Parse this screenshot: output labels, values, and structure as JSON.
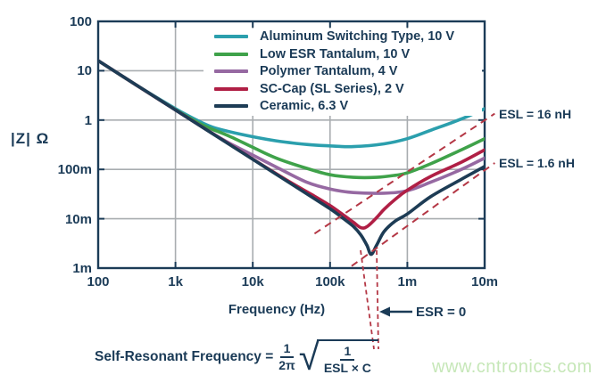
{
  "watermark": {
    "text": "www.cntronics.com",
    "color": "#c6e7b8"
  },
  "colors": {
    "text": "#1b3b57",
    "axis": "#1b3b57",
    "grid": "#a9adb0",
    "dashed": "#b43745",
    "background": "#ffffff"
  },
  "chart_data": {
    "type": "line",
    "title": "",
    "x_axis": {
      "label": "Frequency (Hz)",
      "scale": "log",
      "min": 100,
      "max": 10000000,
      "ticks": [
        {
          "label": "100",
          "value": 100
        },
        {
          "label": "1k",
          "value": 1000
        },
        {
          "label": "10k",
          "value": 10000
        },
        {
          "label": "100k",
          "value": 100000
        },
        {
          "label": "1m",
          "value": 1000000
        },
        {
          "label": "10m",
          "value": 10000000
        }
      ]
    },
    "y_axis": {
      "label": "|Z| Ω",
      "unit": "Ω",
      "scale": "log",
      "min": 0.001,
      "max": 100,
      "ticks": [
        {
          "label": "100",
          "value": 100
        },
        {
          "label": "10",
          "value": 10
        },
        {
          "label": "1",
          "value": 1
        },
        {
          "label": "100m",
          "value": 0.1
        },
        {
          "label": "10m",
          "value": 0.01
        },
        {
          "label": "1m",
          "value": 0.001
        }
      ]
    },
    "grid": true,
    "legend_position": "top-right-inside",
    "series": [
      {
        "name": "Aluminum Switching Type, 10 V",
        "color": "#2b9fad",
        "points": [
          [
            100,
            16
          ],
          [
            300,
            5.3
          ],
          [
            1000,
            1.7
          ],
          [
            2000,
            0.95
          ],
          [
            3000,
            0.72
          ],
          [
            5000,
            0.58
          ],
          [
            10000,
            0.46
          ],
          [
            20000,
            0.38
          ],
          [
            50000,
            0.32
          ],
          [
            100000,
            0.3
          ],
          [
            200000,
            0.29
          ],
          [
            500000,
            0.33
          ],
          [
            1000000,
            0.42
          ],
          [
            2000000,
            0.62
          ],
          [
            5000000,
            1.05
          ],
          [
            10000000,
            1.7
          ]
        ]
      },
      {
        "name": "Low ESR Tantalum, 10 V",
        "color": "#3fa24a",
        "points": [
          [
            100,
            16
          ],
          [
            300,
            5.3
          ],
          [
            1000,
            1.62
          ],
          [
            2000,
            0.87
          ],
          [
            3000,
            0.65
          ],
          [
            5000,
            0.47
          ],
          [
            10000,
            0.28
          ],
          [
            20000,
            0.17
          ],
          [
            50000,
            0.105
          ],
          [
            100000,
            0.078
          ],
          [
            200000,
            0.069
          ],
          [
            400000,
            0.069
          ],
          [
            700000,
            0.076
          ],
          [
            1000000,
            0.085
          ],
          [
            2000000,
            0.13
          ],
          [
            5000000,
            0.25
          ],
          [
            10000000,
            0.42
          ]
        ]
      },
      {
        "name": "Polymer Tantalum, 4 V",
        "color": "#9669a2",
        "points": [
          [
            100,
            16
          ],
          [
            300,
            5.3
          ],
          [
            1000,
            1.6
          ],
          [
            3000,
            0.54
          ],
          [
            5000,
            0.34
          ],
          [
            10000,
            0.195
          ],
          [
            20000,
            0.112
          ],
          [
            50000,
            0.055
          ],
          [
            100000,
            0.04
          ],
          [
            200000,
            0.034
          ],
          [
            500000,
            0.033
          ],
          [
            1000000,
            0.037
          ],
          [
            2000000,
            0.055
          ],
          [
            5000000,
            0.1
          ],
          [
            10000000,
            0.17
          ]
        ]
      },
      {
        "name": "SC-Cap (SL Series), 2 V",
        "color": "#b01f45",
        "points": [
          [
            100,
            16
          ],
          [
            1000,
            1.6
          ],
          [
            10000,
            0.162
          ],
          [
            30000,
            0.056
          ],
          [
            60000,
            0.03
          ],
          [
            100000,
            0.0185
          ],
          [
            150000,
            0.0118
          ],
          [
            200000,
            0.0085
          ],
          [
            250000,
            0.0066
          ],
          [
            300000,
            0.0069
          ],
          [
            400000,
            0.0105
          ],
          [
            500000,
            0.0155
          ],
          [
            700000,
            0.025
          ],
          [
            1000000,
            0.038
          ],
          [
            2000000,
            0.072
          ],
          [
            5000000,
            0.14
          ],
          [
            10000000,
            0.25
          ]
        ]
      },
      {
        "name": "Ceramic, 6.3 V",
        "color": "#1d3c55",
        "points": [
          [
            100,
            16
          ],
          [
            1000,
            1.6
          ],
          [
            10000,
            0.16
          ],
          [
            50000,
            0.032
          ],
          [
            100000,
            0.0159
          ],
          [
            150000,
            0.01
          ],
          [
            200000,
            0.007
          ],
          [
            250000,
            0.0047
          ],
          [
            300000,
            0.0029
          ],
          [
            340000,
            0.0019
          ],
          [
            400000,
            0.0029
          ],
          [
            500000,
            0.0055
          ],
          [
            700000,
            0.009
          ],
          [
            1000000,
            0.0125
          ],
          [
            2000000,
            0.028
          ],
          [
            5000000,
            0.063
          ],
          [
            10000000,
            0.115
          ]
        ]
      }
    ],
    "reference_lines": [
      {
        "label": "ESL = 16 nH",
        "color": "#b43745",
        "points": [
          [
            63000,
            0.005
          ],
          [
            13500000,
            1.35
          ]
        ]
      },
      {
        "label": "ESL = 1.6 nH",
        "color": "#b43745",
        "points": [
          [
            190000,
            0.0011
          ],
          [
            13500000,
            0.135
          ]
        ]
      }
    ],
    "annotations": {
      "esr_zero": {
        "text": "ESR = 0",
        "self_resonant_frequency_hz": 340000
      },
      "self_resonant_formula": {
        "prefix": "Self-Resonant Frequency =",
        "outer_numerator": "1",
        "outer_denominator": "2π",
        "inner_numerator": "1",
        "inner_denominator": "ESL × C"
      }
    }
  }
}
